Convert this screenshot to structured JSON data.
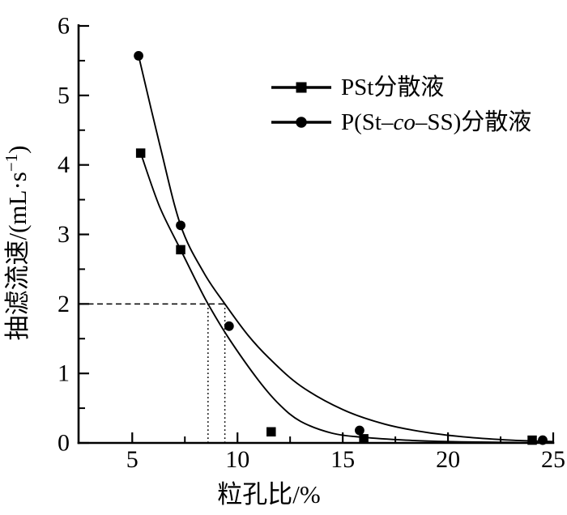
{
  "figure": {
    "background": "#ffffff",
    "foreground": "#000000"
  },
  "chart_data": {
    "type": "scatter",
    "title": "",
    "xlabel": "粒孔比/%",
    "ylabel": "抽滤流速/(mL·s⁻¹)",
    "ylabel_parts": {
      "pre": "抽滤流速/(mL·s",
      "sup": "−1",
      "post": ")"
    },
    "xlim": [
      2.45,
      25
    ],
    "ylim": [
      0,
      6
    ],
    "x_major_ticks": [
      5,
      10,
      15,
      20,
      25
    ],
    "x_minor_ticks": [
      7.5,
      12.5,
      17.5,
      22.5
    ],
    "y_major_ticks": [
      0,
      1,
      2,
      3,
      4,
      5,
      6
    ],
    "y_minor_ticks": [
      0.5,
      1.5,
      2.5,
      3.5,
      4.5,
      5.5
    ],
    "grid": false,
    "legend_position": "upper-right-inside",
    "series": [
      {
        "name": "PSt分散液",
        "marker": "square",
        "color": "#000000",
        "points": [
          [
            5.4,
            4.17
          ],
          [
            7.3,
            2.78
          ],
          [
            11.6,
            0.16
          ],
          [
            16.0,
            0.06
          ],
          [
            24.0,
            0.04
          ]
        ],
        "fit_curve": [
          [
            5.4,
            4.17
          ],
          [
            6.3,
            3.4
          ],
          [
            7.3,
            2.78
          ],
          [
            8.0,
            2.35
          ],
          [
            8.6,
            2.0
          ],
          [
            9.6,
            1.5
          ],
          [
            11.0,
            0.9
          ],
          [
            12.0,
            0.55
          ],
          [
            13.0,
            0.31
          ],
          [
            14.5,
            0.14
          ],
          [
            16.0,
            0.08
          ],
          [
            18.0,
            0.04
          ],
          [
            20.0,
            0.02
          ],
          [
            22.0,
            0.01
          ],
          [
            25.0,
            0.0
          ]
        ]
      },
      {
        "name": "P(St–co–SS)分散液",
        "marker": "circle",
        "color": "#000000",
        "points": [
          [
            5.3,
            5.57
          ],
          [
            7.3,
            3.13
          ],
          [
            9.6,
            1.68
          ],
          [
            15.8,
            0.18
          ],
          [
            24.5,
            0.04
          ]
        ],
        "fit_curve": [
          [
            5.3,
            5.57
          ],
          [
            6.3,
            4.3
          ],
          [
            7.3,
            3.13
          ],
          [
            8.4,
            2.45
          ],
          [
            9.4,
            2.0
          ],
          [
            10.5,
            1.55
          ],
          [
            11.5,
            1.22
          ],
          [
            13.0,
            0.82
          ],
          [
            15.0,
            0.48
          ],
          [
            17.0,
            0.27
          ],
          [
            19.0,
            0.15
          ],
          [
            21.0,
            0.08
          ],
          [
            23.0,
            0.04
          ],
          [
            25.0,
            0.02
          ]
        ]
      }
    ],
    "guides": {
      "dashed_horizontal": {
        "y": 2,
        "x_from": 2.45,
        "x_to": 9.4
      },
      "dotted_verticals": [
        {
          "x": 8.6,
          "y_from": 0,
          "y_to": 2
        },
        {
          "x": 9.4,
          "y_from": 0,
          "y_to": 2
        }
      ]
    }
  },
  "legend": {
    "items": [
      {
        "marker": "square",
        "label": "PSt分散液",
        "label_prefix": "PSt分散液",
        "label_italic": "",
        "label_suffix": ""
      },
      {
        "marker": "circle",
        "label": "P(St–co–SS)分散液",
        "label_prefix": "P(St–",
        "label_italic": "co",
        "label_suffix": "–SS)分散液"
      }
    ]
  }
}
